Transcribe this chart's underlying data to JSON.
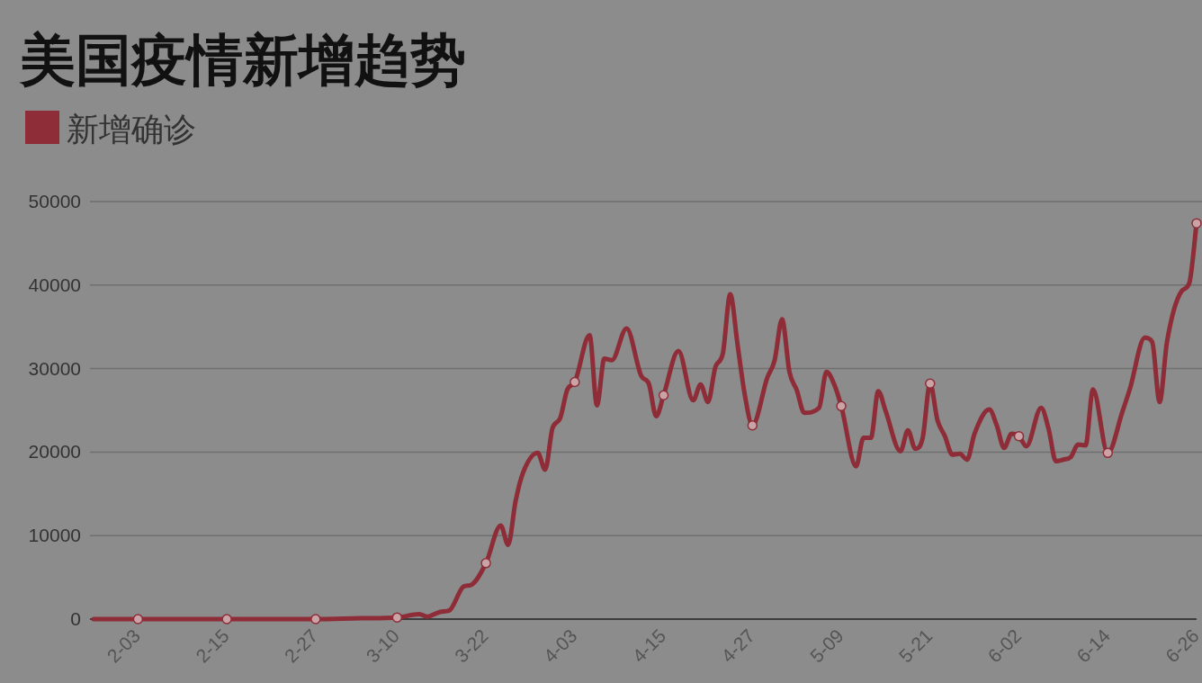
{
  "chart_data": {
    "type": "line",
    "title": "美国疫情新增趋势",
    "x": [
      "--01-28",
      "--02-03",
      "--02-15",
      "--02-27",
      "--03-05",
      "--03-10",
      "--03-13",
      "--03-14",
      "--03-16",
      "--03-17",
      "--03-19",
      "--03-20",
      "--03-22",
      "--03-24",
      "--03-25",
      "--03-26",
      "--03-27",
      "--03-29",
      "--03-30",
      "--03-31",
      "--04-01",
      "--04-02",
      "--04-03",
      "--04-05",
      "--04-06",
      "--04-07",
      "--04-08",
      "--04-10",
      "--04-12",
      "--04-13",
      "--04-14",
      "--04-15",
      "--04-17",
      "--04-19",
      "--04-20",
      "--04-21",
      "--04-22",
      "--04-23",
      "--04-24",
      "--04-25",
      "--04-26",
      "--04-27",
      "--04-29",
      "--04-30",
      "--05-01",
      "--05-02",
      "--05-03",
      "--05-04",
      "--05-06",
      "--05-07",
      "--05-08",
      "--05-09",
      "--05-11",
      "--05-12",
      "--05-13",
      "--05-14",
      "--05-15",
      "--05-17",
      "--05-18",
      "--05-19",
      "--05-20",
      "--05-21",
      "--05-22",
      "--05-23",
      "--05-24",
      "--05-25",
      "--05-26",
      "--05-27",
      "--05-29",
      "--05-30",
      "--05-31",
      "--06-01",
      "--06-02",
      "--06-03",
      "--06-05",
      "--06-06",
      "--06-07",
      "--06-08",
      "--06-09",
      "--06-10",
      "--06-11",
      "--06-12",
      "--06-14",
      "--06-16",
      "--06-17",
      "--06-19",
      "--06-20",
      "--06-21",
      "--06-22",
      "--06-24",
      "--06-25",
      "--06-26"
    ],
    "series": [
      {
        "name": "新增确诊",
        "color": "#8e2d38",
        "values": [
          0,
          0,
          0,
          0,
          100,
          200,
          600,
          300,
          900,
          1000,
          3900,
          4100,
          6700,
          11200,
          8900,
          14100,
          17500,
          19900,
          17900,
          22900,
          24000,
          27500,
          28400,
          34000,
          25600,
          31200,
          31000,
          34800,
          29100,
          28200,
          24300,
          26800,
          32100,
          26200,
          28100,
          26000,
          30200,
          31800,
          38900,
          32800,
          26700,
          23200,
          28900,
          31000,
          35900,
          29600,
          27400,
          24700,
          25300,
          29600,
          28200,
          25500,
          18300,
          21700,
          21700,
          27300,
          24900,
          20100,
          22600,
          20400,
          21700,
          28200,
          23800,
          21900,
          19700,
          19800,
          19100,
          22200,
          25100,
          23200,
          20500,
          22200,
          21900,
          20700,
          25300,
          22800,
          18900,
          19100,
          19400,
          20900,
          20800,
          27500,
          19900,
          24900,
          27600,
          33700,
          33200,
          26000,
          33200,
          39300,
          40200,
          47400
        ]
      },
      {
        "type": "scatter",
        "color": "#c9a3a6",
        "marker": "circle",
        "x": [
          "--02-03",
          "--02-15",
          "--02-27",
          "--03-10",
          "--03-22",
          "--04-03",
          "--04-15",
          "--04-27",
          "--05-09",
          "--05-21",
          "--06-02",
          "--06-14",
          "--06-26"
        ],
        "values": [
          0,
          0,
          0,
          200,
          6700,
          28400,
          26800,
          23200,
          25500,
          28200,
          21900,
          19900,
          47400
        ]
      }
    ],
    "xlim": [
      "--01-28",
      "--06-26"
    ],
    "xticks": [
      {
        "value": "--02-03",
        "label": "2-03"
      },
      {
        "value": "--02-15",
        "label": "2-15"
      },
      {
        "value": "--02-27",
        "label": "2-27"
      },
      {
        "value": "--03-10",
        "label": "3-10"
      },
      {
        "value": "--03-22",
        "label": "3-22"
      },
      {
        "value": "--04-03",
        "label": "4-03"
      },
      {
        "value": "--04-15",
        "label": "4-15"
      },
      {
        "value": "--04-27",
        "label": "4-27"
      },
      {
        "value": "--05-09",
        "label": "5-09"
      },
      {
        "value": "--05-21",
        "label": "5-21"
      },
      {
        "value": "--06-02",
        "label": "6-02"
      },
      {
        "value": "--06-14",
        "label": "6-14"
      },
      {
        "value": "--06-26",
        "label": "6-26"
      }
    ],
    "ylim": [
      0,
      50000
    ],
    "yticks": [
      0,
      10000,
      20000,
      30000,
      40000,
      50000
    ],
    "grid": "y",
    "legend": "top left"
  }
}
